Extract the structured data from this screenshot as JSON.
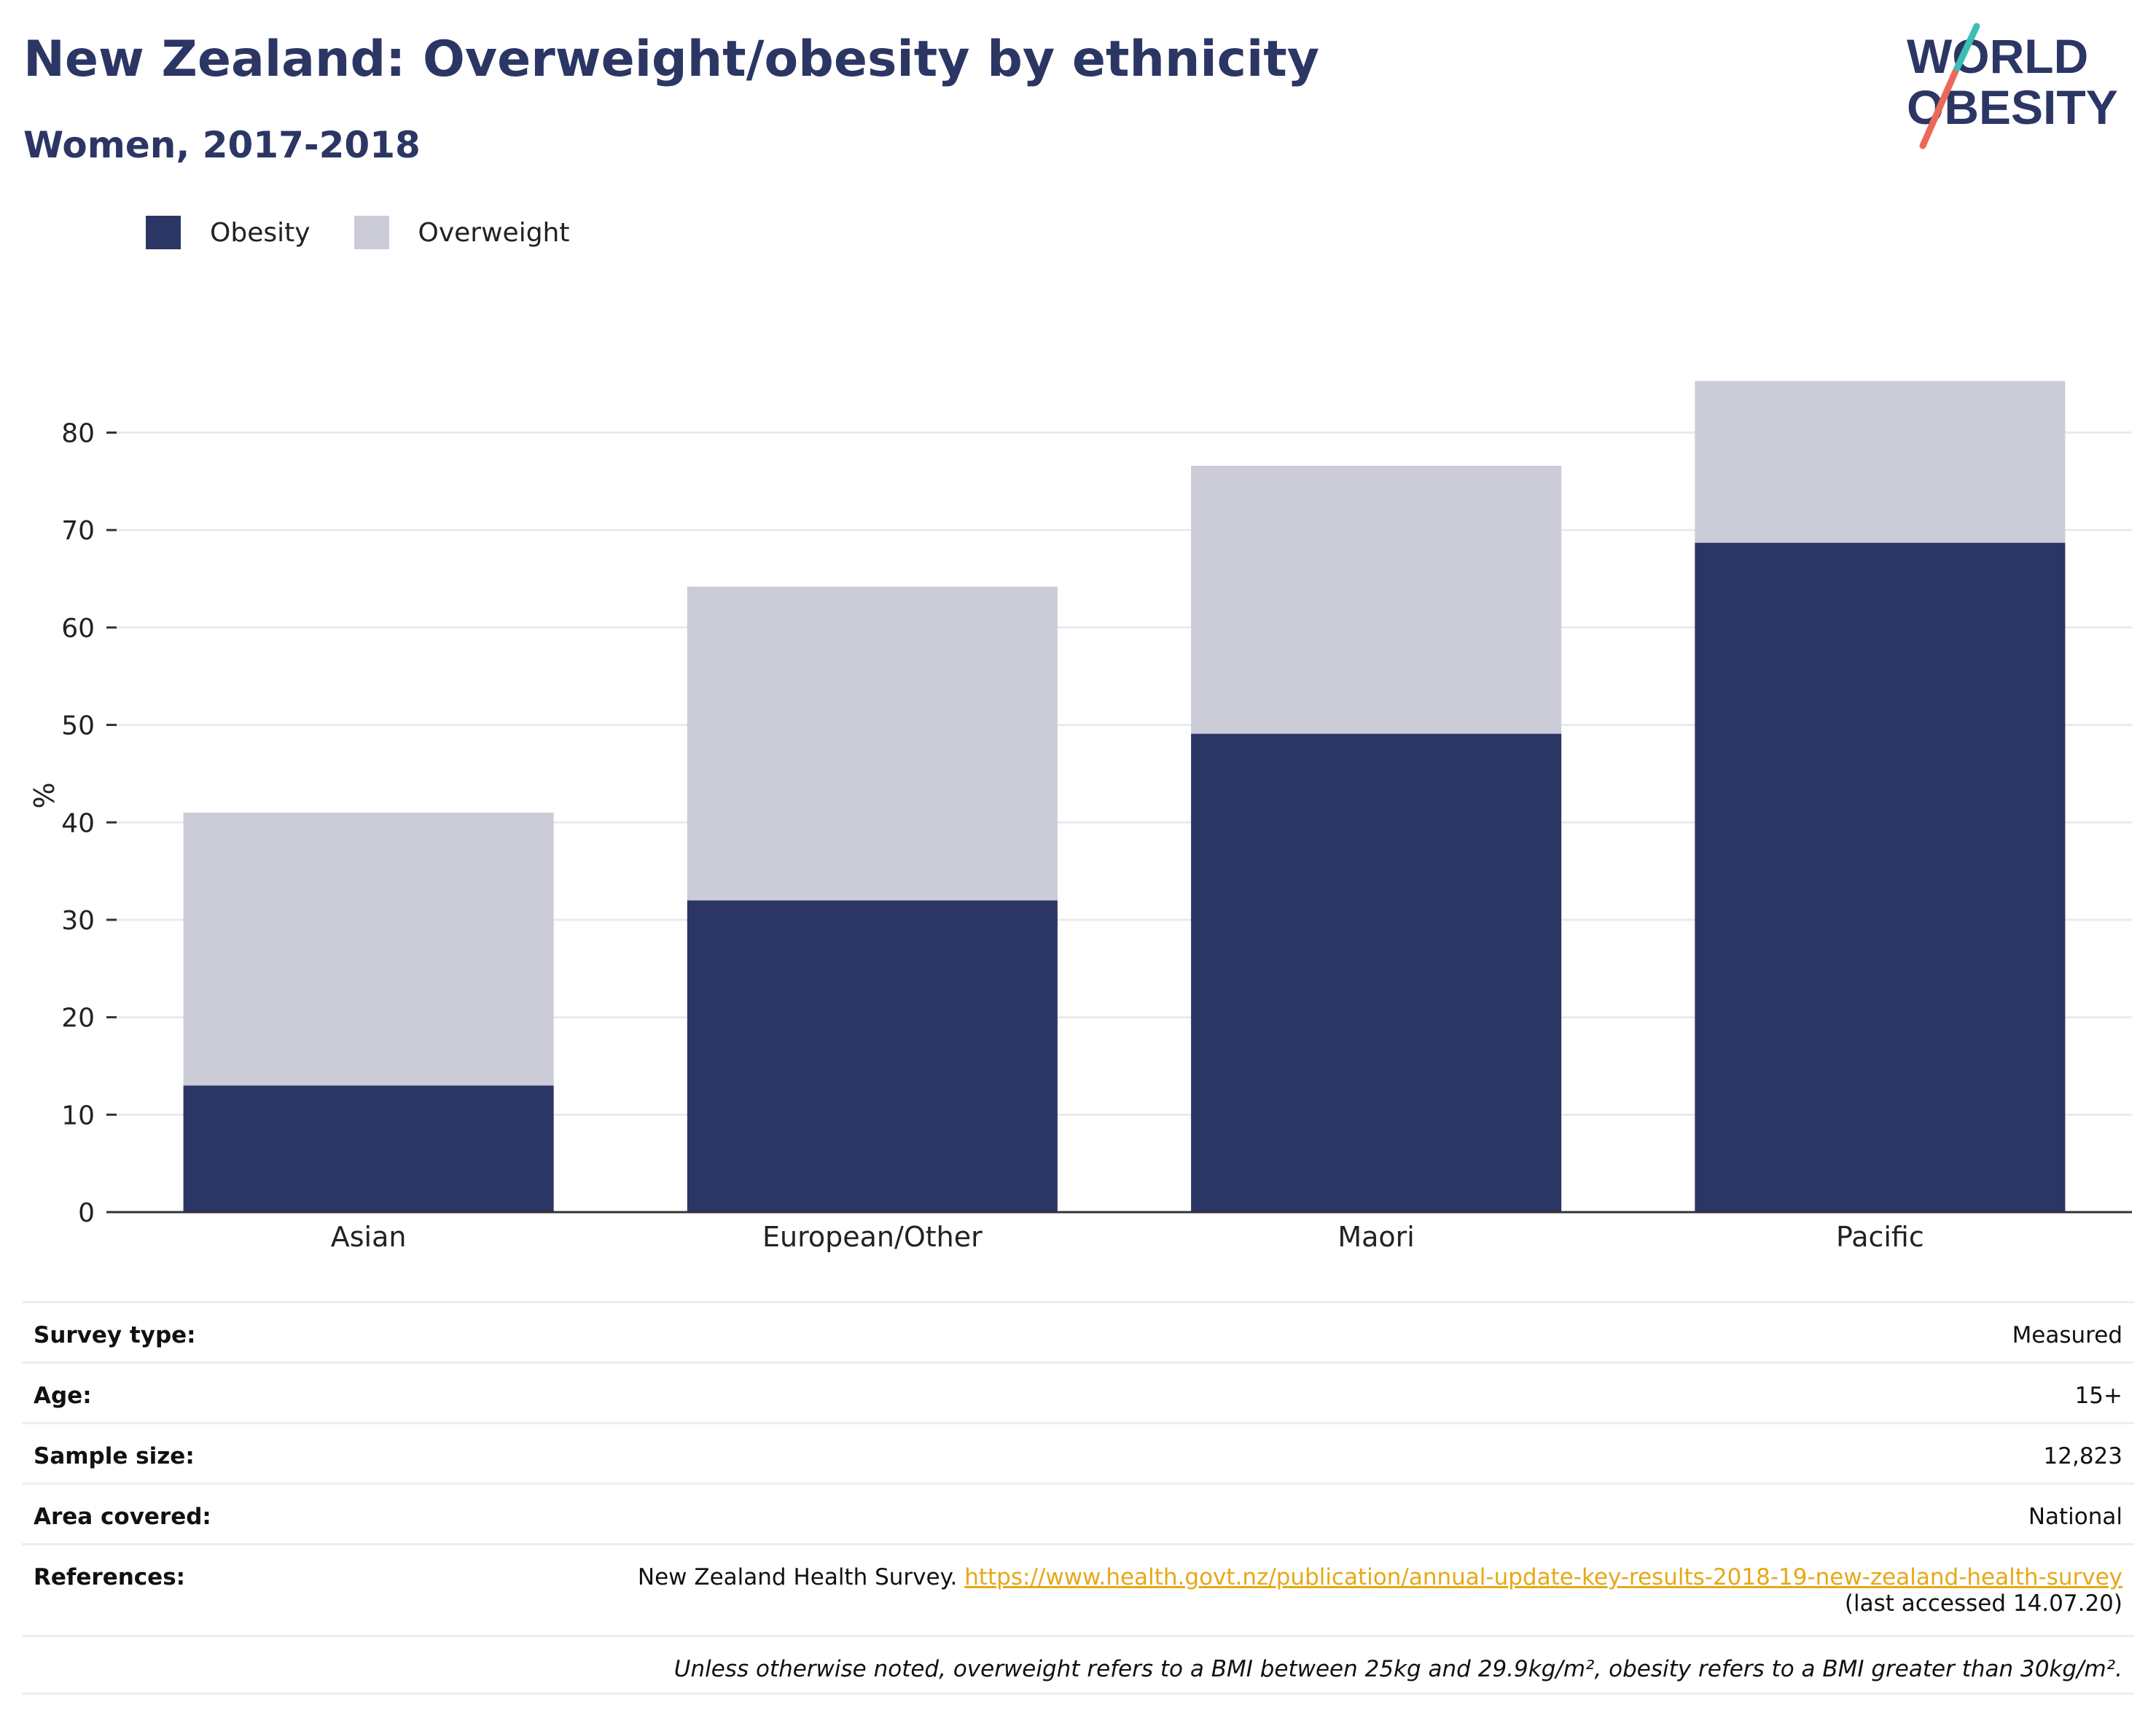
{
  "header": {
    "title": "New Zealand: Overweight/obesity by ethnicity",
    "subtitle": "Women, 2017-2018"
  },
  "logo": {
    "line1": "WORLD",
    "line2": "OBESITY",
    "colors": {
      "text": "#2b3664",
      "slash_top": "#3bbfb4",
      "slash_bottom": "#ea6a5a"
    }
  },
  "legend": [
    {
      "label": "Obesity",
      "color": "#2b3664"
    },
    {
      "label": "Overweight",
      "color": "#cbccd8"
    }
  ],
  "chart_data": {
    "type": "bar",
    "stacked": true,
    "categories": [
      "Asian",
      "European/Other",
      "Maori",
      "Pacific"
    ],
    "series": [
      {
        "name": "Obesity",
        "color": "#2b3664",
        "values": [
          13.0,
          32.0,
          49.1,
          68.7
        ]
      },
      {
        "name": "Overweight",
        "color": "#cbccd8",
        "values": [
          28.0,
          32.2,
          27.5,
          16.6
        ]
      }
    ],
    "ylabel": "%",
    "ylim": [
      0,
      85.5
    ],
    "yticks": [
      0,
      10,
      20,
      30,
      40,
      50,
      60,
      70,
      80
    ],
    "grid": true,
    "legend_position": "top-left"
  },
  "info": {
    "survey_type": {
      "label": "Survey type:",
      "value": "Measured"
    },
    "age": {
      "label": "Age:",
      "value": "15+"
    },
    "sample_size": {
      "label": "Sample size:",
      "value": "12,823"
    },
    "area": {
      "label": "Area covered:",
      "value": "National"
    },
    "references": {
      "label": "References:",
      "text": "New Zealand Health Survey.",
      "link": "https://www.health.govt.nz/publication/annual-update-key-results-2018-19-new-zealand-health-survey",
      "accessed": "(last accessed 14.07.20)"
    },
    "note": "Unless otherwise noted, overweight refers to a BMI between 25kg and 29.9kg/m², obesity refers to a BMI greater than 30kg/m²."
  }
}
